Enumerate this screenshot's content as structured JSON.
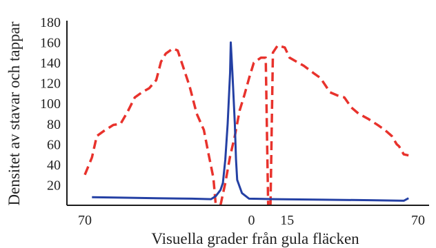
{
  "chart_data": {
    "type": "line",
    "ylabel": "Densitet av stavar och tappar",
    "xlabel": "Visuella grader från gula fläcken",
    "ylim": [
      0,
      180
    ],
    "yticks": [
      20,
      40,
      60,
      80,
      100,
      120,
      140,
      160,
      180
    ],
    "xtick_labels": [
      {
        "x": -70,
        "label": "70"
      },
      {
        "x": 0,
        "label": "0"
      },
      {
        "x": 15,
        "label": "15"
      },
      {
        "x": 70,
        "label": "70"
      }
    ],
    "grid": false,
    "legend": "none",
    "series": [
      {
        "style": "dashed",
        "color": "#e8322c",
        "segments": [
          [
            [
              -70,
              30
            ],
            [
              -67,
              47
            ],
            [
              -65,
              68
            ],
            [
              -62,
              73
            ],
            [
              -58,
              79
            ],
            [
              -55,
              80
            ],
            [
              -52,
              92
            ],
            [
              -49,
              106
            ],
            [
              -46,
              111
            ],
            [
              -43,
              115
            ],
            [
              -40,
              123
            ],
            [
              -38,
              141
            ],
            [
              -36,
              149
            ],
            [
              -33,
              154
            ],
            [
              -31,
              152
            ],
            [
              -29,
              138
            ],
            [
              -26,
              117
            ],
            [
              -23,
              90
            ],
            [
              -20,
              74
            ],
            [
              -18,
              50
            ],
            [
              -16,
              27
            ],
            [
              -15,
              0
            ]
          ],
          [
            [
              -13,
              0
            ],
            [
              -11,
              22
            ],
            [
              -9,
              48
            ],
            [
              -7,
              68
            ],
            [
              -5,
              93
            ],
            [
              -3,
              108
            ],
            [
              -1,
              125
            ],
            [
              1,
              140
            ],
            [
              4,
              145
            ],
            [
              6,
              145
            ],
            [
              7,
              0
            ]
          ],
          [
            [
              8,
              0
            ],
            [
              9,
              150
            ],
            [
              11,
              157
            ],
            [
              14,
              155
            ],
            [
              16,
              145
            ],
            [
              19,
              141
            ],
            [
              22,
              137
            ],
            [
              26,
              130
            ],
            [
              29,
              125
            ],
            [
              33,
              111
            ],
            [
              36,
              108
            ],
            [
              39,
              106
            ],
            [
              42,
              96
            ],
            [
              45,
              90
            ],
            [
              49,
              85
            ],
            [
              53,
              79
            ],
            [
              56,
              74
            ],
            [
              59,
              68
            ],
            [
              61,
              60
            ],
            [
              62,
              58
            ],
            [
              64,
              50
            ],
            [
              66,
              49
            ]
          ]
        ]
      },
      {
        "style": "solid",
        "color": "#2440a4",
        "segments": [
          [
            [
              -67,
              8
            ],
            [
              -55,
              7.5
            ],
            [
              -40,
              7
            ],
            [
              -25,
              6.5
            ],
            [
              -17,
              6
            ],
            [
              -15,
              9
            ],
            [
              -13,
              15
            ],
            [
              -12,
              22
            ],
            [
              -11,
              45
            ],
            [
              -10,
              80
            ],
            [
              -9,
              130
            ],
            [
              -8.7,
              160
            ],
            [
              -8,
              130
            ],
            [
              -7,
              80
            ],
            [
              -6.5,
              45
            ],
            [
              -6,
              25
            ],
            [
              -4,
              12
            ],
            [
              -1,
              6.5
            ],
            [
              10,
              6
            ],
            [
              30,
              5.5
            ],
            [
              50,
              5
            ],
            [
              64,
              4.5
            ],
            [
              66,
              7
            ]
          ]
        ]
      }
    ]
  }
}
